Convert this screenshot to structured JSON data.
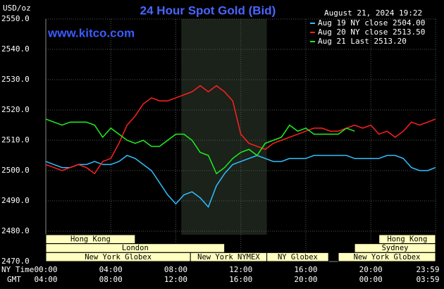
{
  "chart_data": {
    "type": "line",
    "title": "24 Hour Spot Gold (Bid)",
    "y_unit": "USD/oz",
    "source": "www.kitco.com",
    "timestamp": "August 21, 2024 19:22",
    "x_axis_labels": [
      "NY Time",
      "GMT"
    ],
    "x": [
      0,
      0.5,
      1,
      1.5,
      2,
      2.5,
      3,
      3.5,
      4,
      4.5,
      5,
      5.5,
      6,
      6.5,
      7,
      7.5,
      8,
      8.5,
      9,
      9.5,
      10,
      10.5,
      11,
      11.5,
      12,
      12.5,
      13,
      13.5,
      14,
      14.5,
      15,
      15.5,
      16,
      16.5,
      17,
      17.5,
      18,
      18.5,
      19,
      19.5,
      20,
      20.5,
      21,
      21.5,
      22,
      22.5,
      23,
      23.5,
      23.98
    ],
    "series": [
      {
        "name": "Aug 19 NY close 2504.00",
        "color": "#30c0ff",
        "values": [
          2503,
          2502,
          2501,
          2501,
          2502,
          2502,
          2503,
          2502,
          2502,
          2503,
          2505,
          2504,
          2502,
          2500,
          2496,
          2492,
          2489,
          2492,
          2493,
          2491,
          2488,
          2495,
          2499,
          2502,
          2503,
          2504,
          2505,
          2504,
          2503,
          2503,
          2504,
          2504,
          2504,
          2505,
          2505,
          2505,
          2505,
          2505,
          2504,
          2504,
          2504,
          2504,
          2505,
          2505,
          2504,
          2501,
          2500,
          2500,
          2501
        ]
      },
      {
        "name": "Aug 20 NY close 2513.50",
        "color": "#ff2020",
        "values": [
          2502,
          2501,
          2500,
          2501,
          2502,
          2501,
          2499,
          2503,
          2504,
          2509,
          2515,
          2518,
          2522,
          2524,
          2523,
          2523,
          2524,
          2525,
          2526,
          2528,
          2526,
          2528,
          2526,
          2523,
          2512,
          2509,
          2508,
          2507,
          2509,
          2510,
          2511,
          2512,
          2513,
          2514,
          2514,
          2513,
          2513,
          2514,
          2515,
          2514,
          2515,
          2512,
          2513,
          2511,
          2513,
          2516,
          2515,
          2516,
          2517
        ]
      },
      {
        "name": "Aug 21 Last 2513.20",
        "color": "#20ee20",
        "values": [
          2517,
          2516,
          2515,
          2516,
          2516,
          2516,
          2515,
          2511,
          2514,
          2512,
          2510,
          2509,
          2510,
          2508,
          2508,
          2510,
          2512,
          2512,
          2510,
          2506,
          2505,
          2499,
          2501,
          2504,
          2506,
          2507,
          2505,
          2509,
          2510,
          2511,
          2515,
          2513,
          2514,
          2512,
          2512,
          2512,
          2512,
          2514,
          2513,
          null,
          null,
          null,
          null,
          null,
          null,
          null,
          null,
          null,
          null
        ]
      }
    ],
    "xlim": [
      0,
      23.983
    ],
    "ylim": [
      2470,
      2550
    ],
    "yticks": [
      {
        "value": 2470,
        "label": "2470.0"
      },
      {
        "value": 2480,
        "label": "2480.0"
      },
      {
        "value": 2490,
        "label": "2490.0"
      },
      {
        "value": 2500,
        "label": "2500.0"
      },
      {
        "value": 2510,
        "label": "2510.0"
      },
      {
        "value": 2520,
        "label": "2520.0"
      },
      {
        "value": 2530,
        "label": "2530.0"
      },
      {
        "value": 2540,
        "label": "2540.0"
      },
      {
        "value": 2550,
        "label": "2550.0"
      }
    ],
    "xticks": [
      {
        "value": 0,
        "label": "00:00"
      },
      {
        "value": 4,
        "label": "04:00"
      },
      {
        "value": 8,
        "label": "08:00"
      },
      {
        "value": 12,
        "label": "12:00"
      },
      {
        "value": 16,
        "label": "16:00"
      },
      {
        "value": 20,
        "label": "20:00"
      },
      {
        "value": 23.983,
        "label": "23:59"
      }
    ],
    "xticks_gmt": [
      {
        "value": 0,
        "label": "04:00"
      },
      {
        "value": 4,
        "label": "08:00"
      },
      {
        "value": 8,
        "label": "12:00"
      },
      {
        "value": 12,
        "label": "16:00"
      },
      {
        "value": 16,
        "label": "20:00"
      },
      {
        "value": 20,
        "label": "00:00"
      },
      {
        "value": 23.983,
        "label": "03:59"
      }
    ],
    "sessions": [
      {
        "label": "Hong Kong",
        "start": 0,
        "end": 5.5
      },
      {
        "label": "London",
        "start": 0,
        "end": 11
      },
      {
        "label": "New York Globex",
        "start": 0,
        "end": 8.9
      },
      {
        "label": "New York NYMEX",
        "start": 8.9,
        "end": 13.6
      },
      {
        "label": "NY Globex",
        "start": 13.6,
        "end": 17.4
      },
      {
        "label": "Hong Kong",
        "start": 20.5,
        "end": 23.983
      },
      {
        "label": "Sydney",
        "start": 19,
        "end": 23.983
      },
      {
        "label": "New York Globex",
        "start": 18,
        "end": 23.983
      }
    ],
    "grid": true
  }
}
